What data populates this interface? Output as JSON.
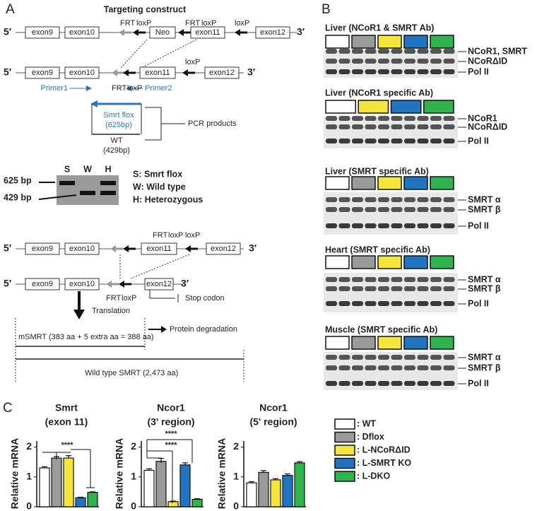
{
  "panel_a": {
    "letter": "A",
    "title": "Targeting construct",
    "row1": [
      "5′",
      "exon9",
      "exon10",
      "FRT",
      "loxP",
      "Neo",
      "FRT",
      "loxP",
      "exon11",
      "loxP",
      "exon12",
      "3′"
    ],
    "row2": [
      "5′",
      "exon9",
      "exon10",
      "exon11",
      "loxP",
      "exon12",
      "3′",
      "FRT",
      "loxP",
      "Primer1",
      "Primer2",
      "Smrt flox",
      "(625bp)",
      "PCR products",
      "WT",
      "(429bp)"
    ],
    "gel": {
      "bands": [
        "625 bp",
        "429 bp"
      ],
      "lanes": [
        "S",
        "W",
        "H"
      ],
      "key": [
        "S: Smrt flox",
        "W: Wild type",
        "H: Heterozygous"
      ]
    },
    "row3": [
      "FRT",
      "loxP",
      "loxP",
      "5′",
      "exon9",
      "exon10",
      "exon11",
      "exon12",
      "3′"
    ],
    "row4": [
      "5′",
      "exon9",
      "exon10",
      "exon12",
      "3′",
      "FRT",
      "loxP",
      "Stop codon",
      "Translation",
      "Protein degradation",
      "mSMRT (383 aa + 5 extra aa = 388 aa)",
      "Wild type SMRT (2,473 aa)"
    ]
  },
  "panel_b": {
    "letter": "B",
    "blots": [
      {
        "title": "Liver (NCoR1 & SMRT Ab)",
        "labels": [
          "NCoR1, SMRT",
          "NCoRΔID",
          "Pol II"
        ]
      },
      {
        "title": "Liver (NCoR1 specific Ab)",
        "labels": [
          "NCoR1",
          "NCoRΔID",
          "Pol II"
        ]
      },
      {
        "title": "Liver (SMRT specific Ab)",
        "labels": [
          "SMRT α",
          "SMRT β",
          "Pol II"
        ]
      },
      {
        "title": "Heart (SMRT specific Ab)",
        "labels": [
          "SMRT α",
          "SMRT β",
          "Pol II"
        ]
      },
      {
        "title": "Muscle (SMRT specific Ab)",
        "labels": [
          "SMRT α",
          "SMRT β",
          "Pol II"
        ]
      }
    ]
  },
  "panel_c": {
    "letter": "C"
  },
  "legend": [
    {
      "label": ": WT",
      "color": "#ffffff"
    },
    {
      "label": ": Dflox",
      "color": "#9a9a9a"
    },
    {
      "label": ": L-NCoRΔID",
      "color": "#f4e63c"
    },
    {
      "label": ": L-SMRT KO",
      "color": "#2174bf"
    },
    {
      "label": ": L-DKO",
      "color": "#2fb34c"
    }
  ],
  "chart_data": [
    {
      "type": "bar",
      "title": [
        "Smrt",
        "(exon 11)"
      ],
      "y_label": "Relative mRNA",
      "values": [
        1.3,
        1.63,
        1.63,
        0.3,
        0.48
      ],
      "errors": [
        0.04,
        0.05,
        0.08,
        0.02,
        0.02
      ],
      "ylim": [
        0,
        2.2
      ],
      "yticks": [
        0,
        1,
        2
      ],
      "annotations": [
        "****"
      ]
    },
    {
      "type": "bar",
      "title": [
        "Ncor1",
        "(3' region)"
      ],
      "y_label": "Relative mRNA",
      "values": [
        1.22,
        1.52,
        0.17,
        1.4,
        0.25
      ],
      "errors": [
        0.05,
        0.1,
        0.02,
        0.07,
        0.02
      ],
      "ylim": [
        0,
        2.2
      ],
      "yticks": [
        0,
        1,
        2
      ],
      "annotations": [
        "****",
        "****"
      ]
    },
    {
      "type": "bar",
      "title": [
        "Ncor1",
        "(5' region)"
      ],
      "y_label": "Relative mRNA",
      "values": [
        0.8,
        1.15,
        0.9,
        1.05,
        1.47
      ],
      "errors": [
        0.04,
        0.06,
        0.04,
        0.05,
        0.04
      ],
      "ylim": [
        0,
        2.2
      ],
      "yticks": [
        0,
        1,
        2
      ]
    }
  ]
}
